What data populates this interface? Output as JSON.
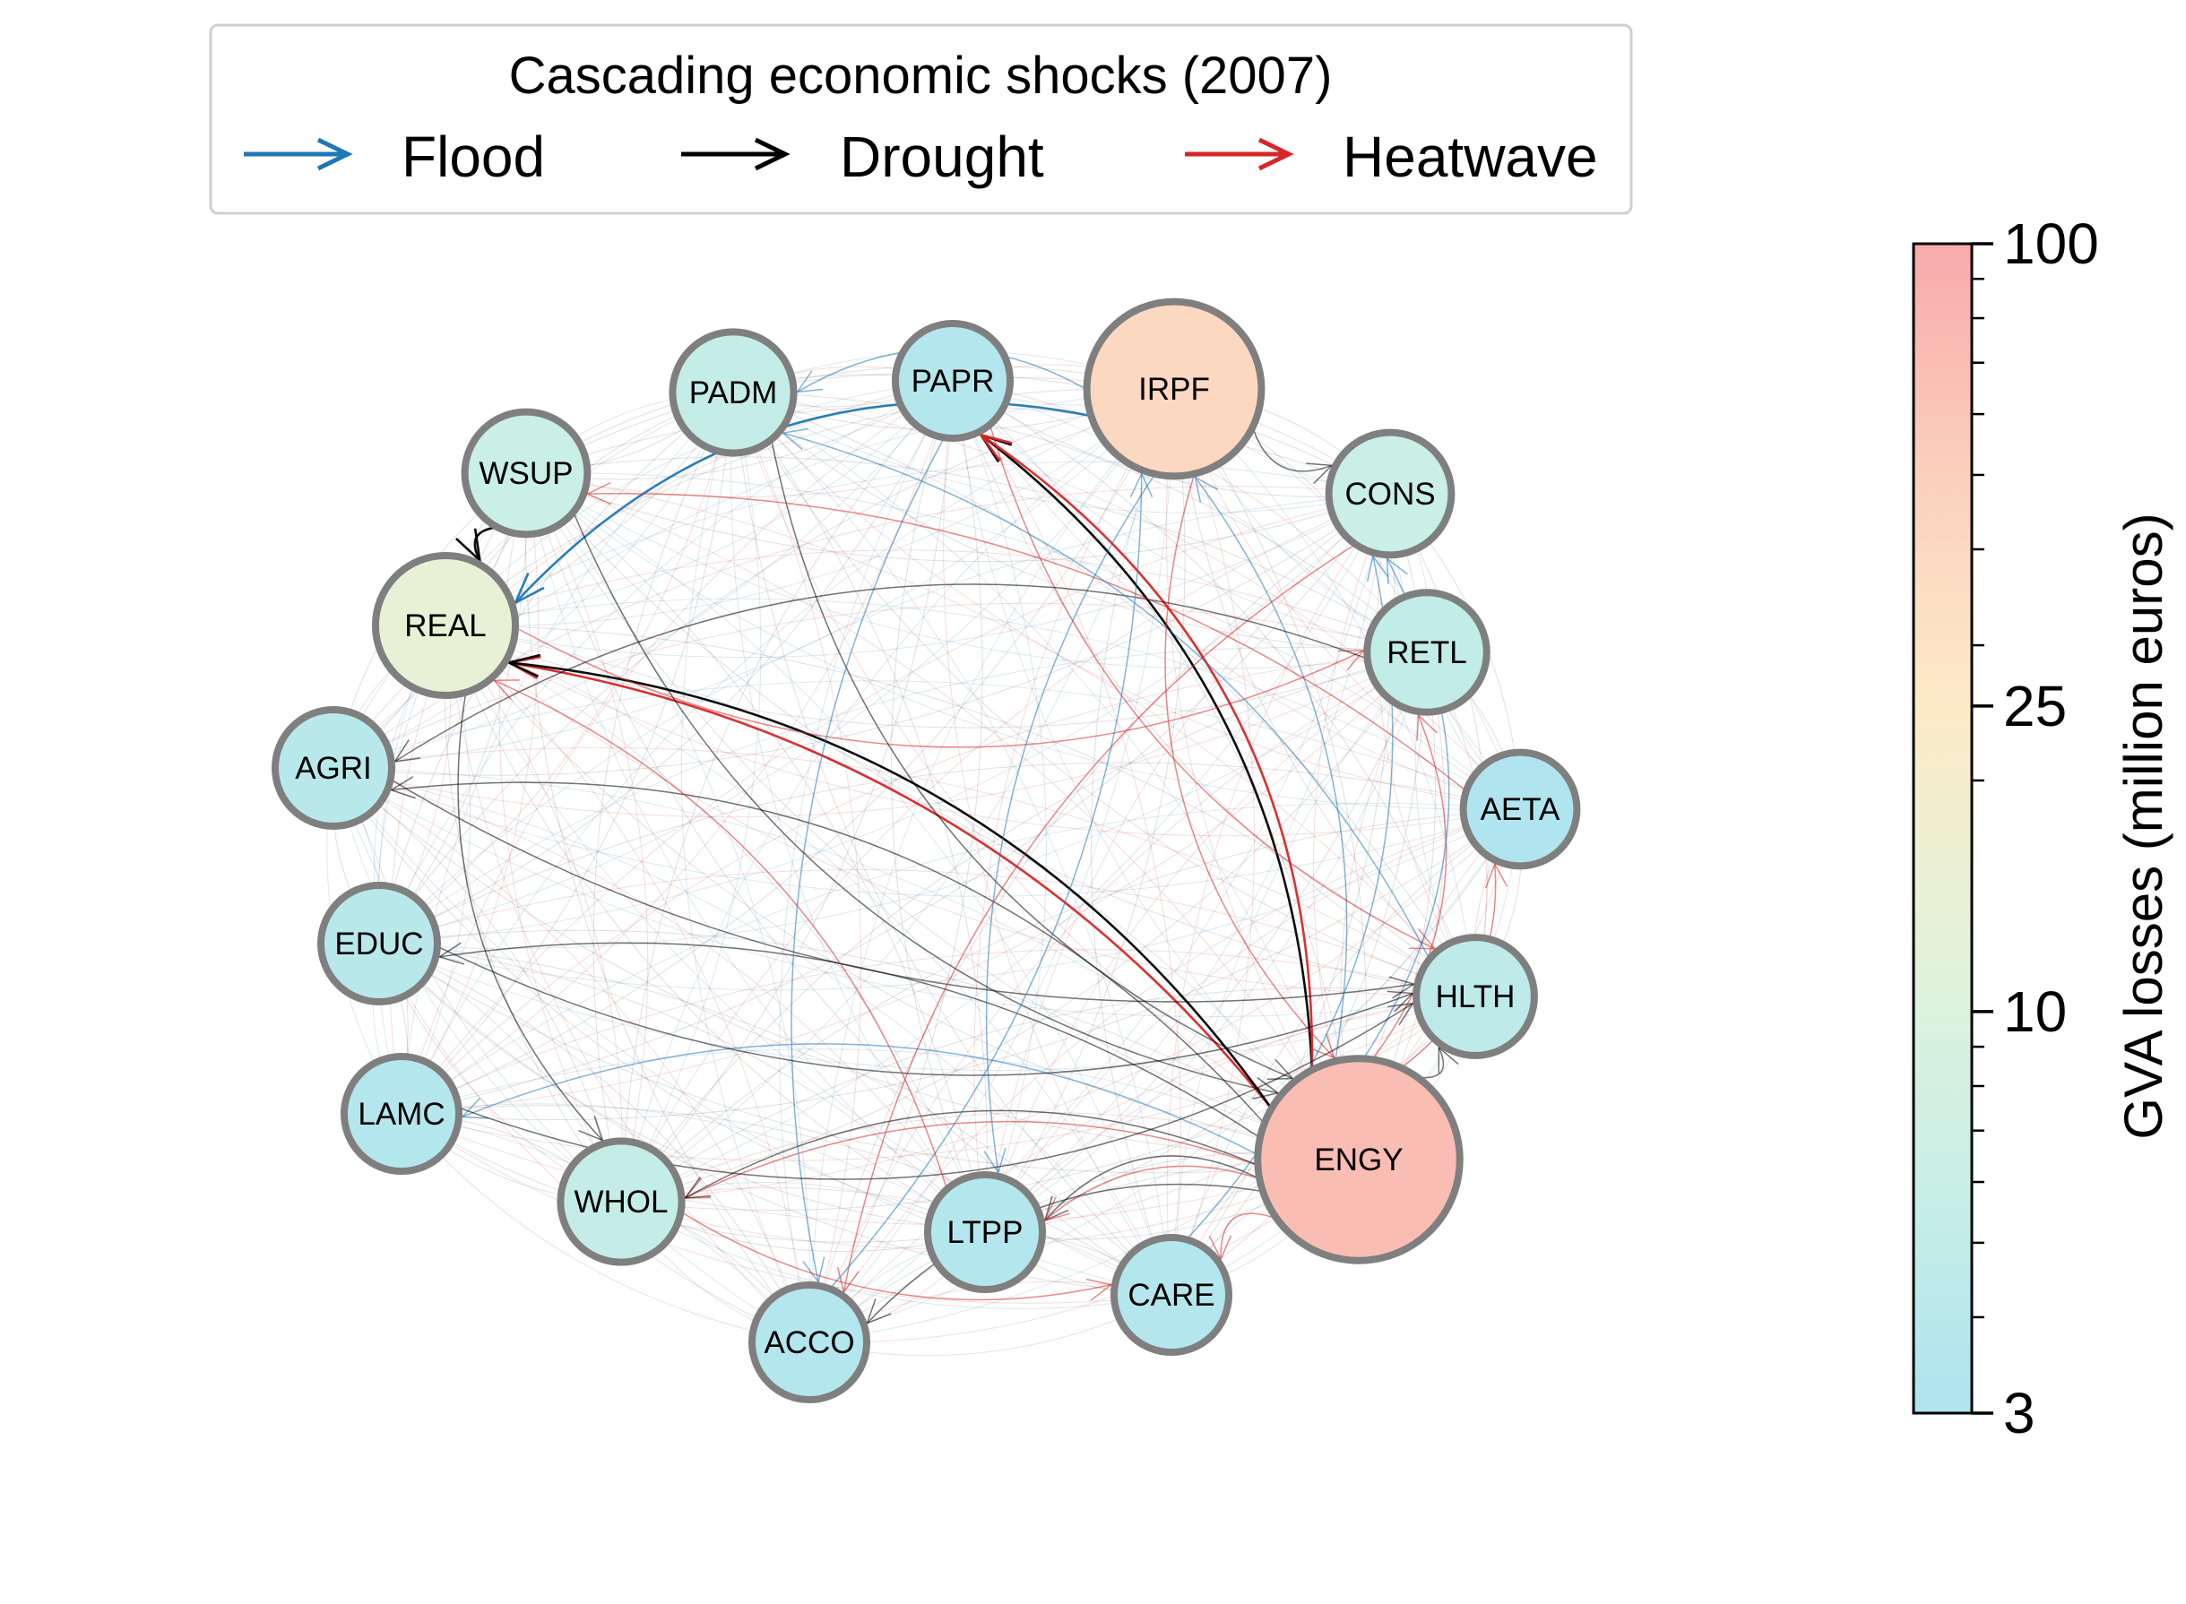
{
  "legend": {
    "title": "Cascading economic shocks (2007)",
    "entries": [
      {
        "label": "Flood",
        "color": "#1f77b4"
      },
      {
        "label": "Drought",
        "color": "#000000"
      },
      {
        "label": "Heatwave",
        "color": "#d62728"
      }
    ]
  },
  "colorbar": {
    "label": "GVA losses (million euros)",
    "scale": "log",
    "range": [
      3,
      100
    ],
    "ticks": [
      {
        "value": 100,
        "label": "100"
      },
      {
        "value": 25,
        "label": "25"
      },
      {
        "value": 10,
        "label": "10"
      },
      {
        "value": 3,
        "label": "3"
      }
    ],
    "colors": [
      "#aee3ef",
      "#c9efe6",
      "#e3f3d9",
      "#fdebc8",
      "#fbd0bd",
      "#f8aaaa"
    ]
  },
  "nodes": [
    {
      "id": "PADM",
      "value": 5.5
    },
    {
      "id": "PAPR",
      "value": 3.5
    },
    {
      "id": "IRPF",
      "value": 40
    },
    {
      "id": "WSUP",
      "value": 6
    },
    {
      "id": "CONS",
      "value": 6
    },
    {
      "id": "REAL",
      "value": 14
    },
    {
      "id": "RETL",
      "value": 5
    },
    {
      "id": "AGRI",
      "value": 4
    },
    {
      "id": "AETA",
      "value": 3.2
    },
    {
      "id": "EDUC",
      "value": 4
    },
    {
      "id": "HLTH",
      "value": 4.5
    },
    {
      "id": "LAMC",
      "value": 3.5
    },
    {
      "id": "ENGY",
      "value": 70
    },
    {
      "id": "WHOL",
      "value": 5.5
    },
    {
      "id": "LTPP",
      "value": 3.5
    },
    {
      "id": "CARE",
      "value": 3.5
    },
    {
      "id": "ACCO",
      "value": 3.5
    }
  ],
  "edges": [
    {
      "from": "ENGY",
      "to": "REAL",
      "hazard": "Heatwave",
      "strength": "strong"
    },
    {
      "from": "ENGY",
      "to": "REAL",
      "hazard": "Drought",
      "strength": "strong"
    },
    {
      "from": "IRPF",
      "to": "REAL",
      "hazard": "Flood",
      "strength": "strong"
    },
    {
      "from": "WSUP",
      "to": "REAL",
      "hazard": "Drought",
      "strength": "strong"
    },
    {
      "from": "ENGY",
      "to": "PAPR",
      "hazard": "Drought",
      "strength": "strong"
    },
    {
      "from": "ENGY",
      "to": "PAPR",
      "hazard": "Heatwave",
      "strength": "strong"
    },
    {
      "from": "ENGY",
      "to": "IRPF",
      "hazard": "Flood",
      "strength": "medium"
    },
    {
      "from": "IRPF",
      "to": "PADM",
      "hazard": "Flood",
      "strength": "medium"
    },
    {
      "from": "PADM",
      "to": "ENGY",
      "hazard": "Drought",
      "strength": "medium"
    },
    {
      "from": "ENGY",
      "to": "WHOL",
      "hazard": "Heatwave",
      "strength": "medium"
    },
    {
      "from": "ENGY",
      "to": "WHOL",
      "hazard": "Drought",
      "strength": "medium"
    },
    {
      "from": "ENGY",
      "to": "LTPP",
      "hazard": "Drought",
      "strength": "medium"
    },
    {
      "from": "ENGY",
      "to": "LTPP",
      "hazard": "Heatwave",
      "strength": "medium"
    },
    {
      "from": "ENGY",
      "to": "ACCO",
      "hazard": "Drought",
      "strength": "medium"
    },
    {
      "from": "ENGY",
      "to": "CARE",
      "hazard": "Heatwave",
      "strength": "medium"
    },
    {
      "from": "ENGY",
      "to": "HLTH",
      "hazard": "Drought",
      "strength": "medium"
    },
    {
      "from": "ENGY",
      "to": "RETL",
      "hazard": "Heatwave",
      "strength": "medium"
    },
    {
      "from": "ENGY",
      "to": "CONS",
      "hazard": "Flood",
      "strength": "medium"
    },
    {
      "from": "ENGY",
      "to": "AETA",
      "hazard": "Heatwave",
      "strength": "medium"
    },
    {
      "from": "ENGY",
      "to": "LAMC",
      "hazard": "Flood",
      "strength": "medium"
    },
    {
      "from": "ENGY",
      "to": "AGRI",
      "hazard": "Drought",
      "strength": "medium"
    },
    {
      "from": "ENGY",
      "to": "EDUC",
      "hazard": "Drought",
      "strength": "medium"
    },
    {
      "from": "IRPF",
      "to": "CONS",
      "hazard": "Drought",
      "strength": "medium"
    },
    {
      "from": "IRPF",
      "to": "ENGY",
      "hazard": "Heatwave",
      "strength": "medium"
    },
    {
      "from": "IRPF",
      "to": "LTPP",
      "hazard": "Flood",
      "strength": "medium"
    },
    {
      "from": "REAL",
      "to": "WHOL",
      "hazard": "Drought",
      "strength": "medium"
    },
    {
      "from": "REAL",
      "to": "RETL",
      "hazard": "Heatwave",
      "strength": "medium"
    },
    {
      "from": "PAPR",
      "to": "ACCO",
      "hazard": "Flood",
      "strength": "medium"
    },
    {
      "from": "PAPR",
      "to": "HLTH",
      "hazard": "Heatwave",
      "strength": "medium"
    },
    {
      "from": "WSUP",
      "to": "ENGY",
      "hazard": "Drought",
      "strength": "medium"
    },
    {
      "from": "AGRI",
      "to": "HLTH",
      "hazard": "Drought",
      "strength": "medium"
    },
    {
      "from": "EDUC",
      "to": "HLTH",
      "hazard": "Drought",
      "strength": "medium"
    },
    {
      "from": "LAMC",
      "to": "HLTH",
      "hazard": "Drought",
      "strength": "medium"
    },
    {
      "from": "WHOL",
      "to": "CARE",
      "hazard": "Heatwave",
      "strength": "medium"
    },
    {
      "from": "CONS",
      "to": "ACCO",
      "hazard": "Heatwave",
      "strength": "medium"
    },
    {
      "from": "RETL",
      "to": "AGRI",
      "hazard": "Drought",
      "strength": "medium"
    },
    {
      "from": "AETA",
      "to": "WSUP",
      "hazard": "Heatwave",
      "strength": "medium"
    },
    {
      "from": "HLTH",
      "to": "PADM",
      "hazard": "Flood",
      "strength": "medium"
    },
    {
      "from": "CARE",
      "to": "CONS",
      "hazard": "Flood",
      "strength": "medium"
    },
    {
      "from": "ACCO",
      "to": "IRPF",
      "hazard": "Flood",
      "strength": "medium"
    },
    {
      "from": "LTPP",
      "to": "REAL",
      "hazard": "Heatwave",
      "strength": "medium"
    }
  ]
}
